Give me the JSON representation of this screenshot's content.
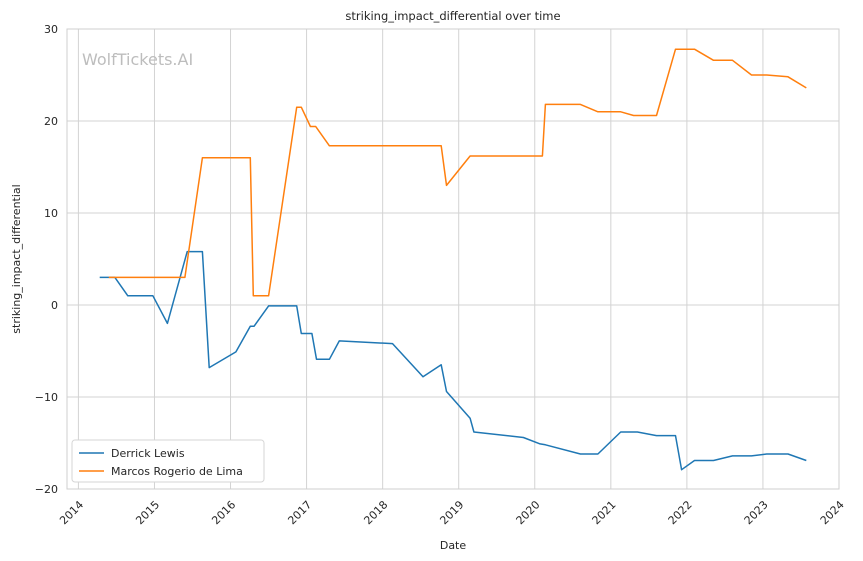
{
  "chart_data": {
    "type": "line",
    "title": "striking_impact_differential over time",
    "xlabel": "Date",
    "ylabel": "striking_impact_differential",
    "watermark": "WolfTickets.AI",
    "xlim": [
      2013.85,
      2024.0
    ],
    "ylim": [
      -20,
      30
    ],
    "x_ticks": [
      2014,
      2015,
      2016,
      2017,
      2018,
      2019,
      2020,
      2021,
      2022,
      2023,
      2024
    ],
    "x_tick_labels": [
      "2014",
      "2015",
      "2016",
      "2017",
      "2018",
      "2019",
      "2020",
      "2021",
      "2022",
      "2023",
      "2024"
    ],
    "y_ticks": [
      -20,
      -10,
      0,
      10,
      20,
      30
    ],
    "y_tick_labels": [
      "−20",
      "−10",
      "0",
      "10",
      "20",
      "30"
    ],
    "grid": true,
    "legend_position": "lower-left",
    "series": [
      {
        "name": "Derrick Lewis",
        "color": "#1f77b4",
        "x": [
          2014.28,
          2014.48,
          2014.65,
          2014.98,
          2015.17,
          2015.43,
          2015.63,
          2015.72,
          2016.07,
          2016.26,
          2016.31,
          2016.5,
          2016.87,
          2016.93,
          2017.07,
          2017.13,
          2017.3,
          2017.43,
          2018.13,
          2018.53,
          2018.77,
          2018.84,
          2019.15,
          2019.2,
          2019.85,
          2020.07,
          2020.14,
          2020.6,
          2020.83,
          2021.13,
          2021.35,
          2021.6,
          2021.85,
          2021.93,
          2022.1,
          2022.35,
          2022.6,
          2022.85,
          2023.05,
          2023.33,
          2023.57
        ],
        "y": [
          3,
          3,
          1,
          1,
          -2,
          5.8,
          5.8,
          -6.8,
          -5.1,
          -2.3,
          -2.3,
          -0.1,
          -0.1,
          -3.1,
          -3.1,
          -5.9,
          -5.9,
          -3.9,
          -4.2,
          -7.8,
          -6.5,
          -9.4,
          -12.3,
          -13.8,
          -14.4,
          -15.1,
          -15.2,
          -16.2,
          -16.2,
          -13.8,
          -13.8,
          -14.2,
          -14.2,
          -17.9,
          -16.9,
          -16.9,
          -16.4,
          -16.4,
          -16.2,
          -16.2,
          -16.9
        ]
      },
      {
        "name": "Marcos Rogerio de Lima",
        "color": "#ff7f0e",
        "x": [
          2014.4,
          2014.55,
          2015.4,
          2015.63,
          2016.26,
          2016.3,
          2016.5,
          2016.87,
          2016.93,
          2017.05,
          2017.12,
          2017.3,
          2018.77,
          2018.84,
          2019.15,
          2020.1,
          2020.14,
          2020.6,
          2020.83,
          2021.13,
          2021.3,
          2021.6,
          2021.85,
          2022.1,
          2022.35,
          2022.6,
          2022.85,
          2023.05,
          2023.33,
          2023.57
        ],
        "y": [
          3,
          3,
          3,
          16,
          16,
          1,
          1,
          21.5,
          21.5,
          19.4,
          19.4,
          17.3,
          17.3,
          13,
          16.2,
          16.2,
          21.8,
          21.8,
          21,
          21,
          20.6,
          20.6,
          27.8,
          27.8,
          26.6,
          26.6,
          25,
          25,
          24.8,
          23.6
        ]
      }
    ]
  }
}
